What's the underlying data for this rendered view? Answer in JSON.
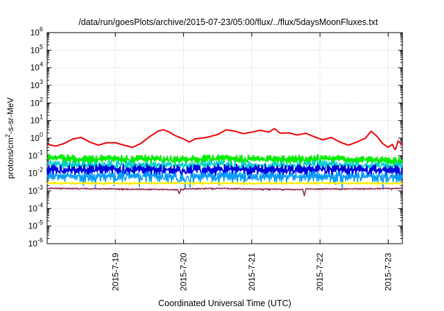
{
  "chart_data": {
    "type": "line",
    "title": "/data/run/goesPlots/archive/2015-07-23/05:00/flux/../flux/5daysMoonFluxes.txt",
    "xlabel": "Coordinated Universal Time (UTC)",
    "ylabel": {
      "pre": "protons/cm",
      "sup": "2",
      "post": "-s-sr-MeV"
    },
    "yscale": "log",
    "ylim_exp": [
      -6,
      6
    ],
    "xlim": [
      "2015-07-18T00:00",
      "2015-07-23T05:00"
    ],
    "grid": true,
    "x_ticks": [
      {
        "date": "2015-07-19",
        "label": "2015-7-19"
      },
      {
        "date": "2015-07-20",
        "label": "2015-7-20"
      },
      {
        "date": "2015-07-21",
        "label": "2015-7-21"
      },
      {
        "date": "2015-07-22",
        "label": "2015-7-22"
      },
      {
        "date": "2015-07-23",
        "label": "2015-7-23"
      }
    ],
    "y_ticks": [
      {
        "base": "10",
        "exp": "-6"
      },
      {
        "base": "10",
        "exp": "-5"
      },
      {
        "base": "10",
        "exp": "-4"
      },
      {
        "base": "10",
        "exp": "-3"
      },
      {
        "base": "10",
        "exp": "-2"
      },
      {
        "base": "10",
        "exp": "-1"
      },
      {
        "base": "10",
        "exp": "0"
      },
      {
        "base": "10",
        "exp": "1"
      },
      {
        "base": "10",
        "exp": "2"
      },
      {
        "base": "10",
        "exp": "3"
      },
      {
        "base": "10",
        "exp": "4"
      },
      {
        "base": "10",
        "exp": "5"
      },
      {
        "base": "10",
        "exp": "6"
      }
    ],
    "series": [
      {
        "color": "#ee0000",
        "width": 2,
        "points": [
          [
            "2015-07-18T00:00",
            0.45
          ],
          [
            "2015-07-18T03:00",
            0.35
          ],
          [
            "2015-07-18T06:00",
            0.5
          ],
          [
            "2015-07-18T09:00",
            0.9
          ],
          [
            "2015-07-18T12:00",
            1.1
          ],
          [
            "2015-07-18T15:00",
            0.6
          ],
          [
            "2015-07-18T18:00",
            0.4
          ],
          [
            "2015-07-18T21:00",
            0.55
          ],
          [
            "2015-07-19T00:00",
            0.55
          ],
          [
            "2015-07-19T03:00",
            0.4
          ],
          [
            "2015-07-19T06:00",
            0.3
          ],
          [
            "2015-07-19T09:00",
            0.5
          ],
          [
            "2015-07-19T12:00",
            1.2
          ],
          [
            "2015-07-19T15:00",
            2.5
          ],
          [
            "2015-07-19T17:00",
            3.0
          ],
          [
            "2015-07-19T19:00",
            2.2
          ],
          [
            "2015-07-19T21:00",
            1.4
          ],
          [
            "2015-07-20T00:00",
            0.9
          ],
          [
            "2015-07-20T02:00",
            0.6
          ],
          [
            "2015-07-20T04:00",
            0.9
          ],
          [
            "2015-07-20T08:00",
            1.1
          ],
          [
            "2015-07-20T12:00",
            1.6
          ],
          [
            "2015-07-20T15:00",
            3.0
          ],
          [
            "2015-07-20T18:00",
            2.5
          ],
          [
            "2015-07-20T21:00",
            1.8
          ],
          [
            "2015-07-21T00:00",
            2.2
          ],
          [
            "2015-07-21T03:00",
            2.8
          ],
          [
            "2015-07-21T06:00",
            2.2
          ],
          [
            "2015-07-21T08:00",
            3.5
          ],
          [
            "2015-07-21T10:00",
            1.9
          ],
          [
            "2015-07-21T13:00",
            2.0
          ],
          [
            "2015-07-21T16:00",
            1.5
          ],
          [
            "2015-07-21T19:00",
            1.9
          ],
          [
            "2015-07-21T22:00",
            1.2
          ],
          [
            "2015-07-22T01:00",
            0.8
          ],
          [
            "2015-07-22T04:00",
            1.1
          ],
          [
            "2015-07-22T07:00",
            0.6
          ],
          [
            "2015-07-22T10:00",
            0.4
          ],
          [
            "2015-07-22T13:00",
            0.6
          ],
          [
            "2015-07-22T16:00",
            1.0
          ],
          [
            "2015-07-22T18:00",
            2.5
          ],
          [
            "2015-07-22T20:00",
            1.3
          ],
          [
            "2015-07-22T22:00",
            0.5
          ],
          [
            "2015-07-23T00:00",
            0.3
          ],
          [
            "2015-07-23T01:30",
            0.45
          ],
          [
            "2015-07-23T02:30",
            0.2
          ],
          [
            "2015-07-23T03:30",
            0.7
          ],
          [
            "2015-07-23T05:00",
            0.4
          ]
        ]
      },
      {
        "color": "#00ee00",
        "width": 2,
        "points": [
          [
            "2015-07-18T00:00",
            0.08
          ],
          [
            "2015-07-18T12:00",
            0.06
          ],
          [
            "2015-07-19T00:00",
            0.07
          ],
          [
            "2015-07-19T12:00",
            0.065
          ],
          [
            "2015-07-20T00:00",
            0.06
          ],
          [
            "2015-07-20T12:00",
            0.07
          ],
          [
            "2015-07-21T00:00",
            0.065
          ],
          [
            "2015-07-21T12:00",
            0.06
          ],
          [
            "2015-07-22T00:00",
            0.07
          ],
          [
            "2015-07-22T12:00",
            0.06
          ],
          [
            "2015-07-23T05:00",
            0.05
          ]
        ],
        "noise": [
          0.28,
          0.22
        ],
        "seed": 11
      },
      {
        "color": "#00cccc",
        "width": 1.5,
        "points": [
          [
            "2015-07-18T00:00",
            0.04
          ],
          [
            "2015-07-18T12:00",
            0.03
          ],
          [
            "2015-07-19T00:00",
            0.035
          ],
          [
            "2015-07-19T12:00",
            0.03
          ],
          [
            "2015-07-20T00:00",
            0.03
          ],
          [
            "2015-07-20T12:00",
            0.035
          ],
          [
            "2015-07-21T00:00",
            0.03
          ],
          [
            "2015-07-21T12:00",
            0.03
          ],
          [
            "2015-07-22T00:00",
            0.035
          ],
          [
            "2015-07-22T12:00",
            0.03
          ],
          [
            "2015-07-23T05:00",
            0.028
          ]
        ],
        "noise": [
          0.26,
          0.3
        ],
        "seed": 23
      },
      {
        "color": "#0000dd",
        "width": 2,
        "points": [
          [
            "2015-07-18T00:00",
            0.018
          ],
          [
            "2015-07-18T12:00",
            0.016
          ],
          [
            "2015-07-19T00:00",
            0.018
          ],
          [
            "2015-07-19T12:00",
            0.017
          ],
          [
            "2015-07-20T00:00",
            0.016
          ],
          [
            "2015-07-20T12:00",
            0.018
          ],
          [
            "2015-07-21T00:00",
            0.017
          ],
          [
            "2015-07-21T12:00",
            0.016
          ],
          [
            "2015-07-22T00:00",
            0.018
          ],
          [
            "2015-07-22T12:00",
            0.016
          ],
          [
            "2015-07-23T05:00",
            0.015
          ]
        ],
        "noise": [
          0.34,
          0.3
        ],
        "seed": 37
      },
      {
        "color": "#0099ff",
        "width": 1.5,
        "points": [
          [
            "2015-07-18T00:00",
            0.008
          ],
          [
            "2015-07-18T12:00",
            0.007
          ],
          [
            "2015-07-19T00:00",
            0.008
          ],
          [
            "2015-07-19T12:00",
            0.0075
          ],
          [
            "2015-07-20T00:00",
            0.007
          ],
          [
            "2015-07-20T12:00",
            0.008
          ],
          [
            "2015-07-21T00:00",
            0.0075
          ],
          [
            "2015-07-21T12:00",
            0.007
          ],
          [
            "2015-07-22T00:00",
            0.008
          ],
          [
            "2015-07-22T12:00",
            0.007
          ],
          [
            "2015-07-23T05:00",
            0.007
          ]
        ],
        "noise": [
          0.3,
          0.38
        ],
        "seed": 51
      },
      {
        "color": "#ffee00",
        "width": 2,
        "points": [
          [
            "2015-07-18T00:00",
            0.0028
          ],
          [
            "2015-07-19T00:00",
            0.0027
          ],
          [
            "2015-07-20T00:00",
            0.0028
          ],
          [
            "2015-07-21T00:00",
            0.0027
          ],
          [
            "2015-07-22T00:00",
            0.0028
          ],
          [
            "2015-07-23T05:00",
            0.0027
          ]
        ],
        "noise": [
          0.05,
          0.05
        ],
        "seed": 67
      },
      {
        "color": "#8b2252",
        "width": 1.5,
        "points": [
          [
            "2015-07-18T00:00",
            0.0014
          ],
          [
            "2015-07-19T00:00",
            0.0013
          ],
          [
            "2015-07-19T22:00",
            0.0012
          ],
          [
            "2015-07-19T22:30",
            0.0006
          ],
          [
            "2015-07-19T23:00",
            0.0013
          ],
          [
            "2015-07-20T12:00",
            0.0014
          ],
          [
            "2015-07-21T00:00",
            0.0013
          ],
          [
            "2015-07-21T18:00",
            0.0012
          ],
          [
            "2015-07-21T18:30",
            0.0005
          ],
          [
            "2015-07-21T19:00",
            0.0013
          ],
          [
            "2015-07-22T12:00",
            0.0013
          ],
          [
            "2015-07-23T05:00",
            0.0014
          ]
        ],
        "noise": [
          0.04,
          0.04
        ],
        "seed": 79
      }
    ]
  }
}
